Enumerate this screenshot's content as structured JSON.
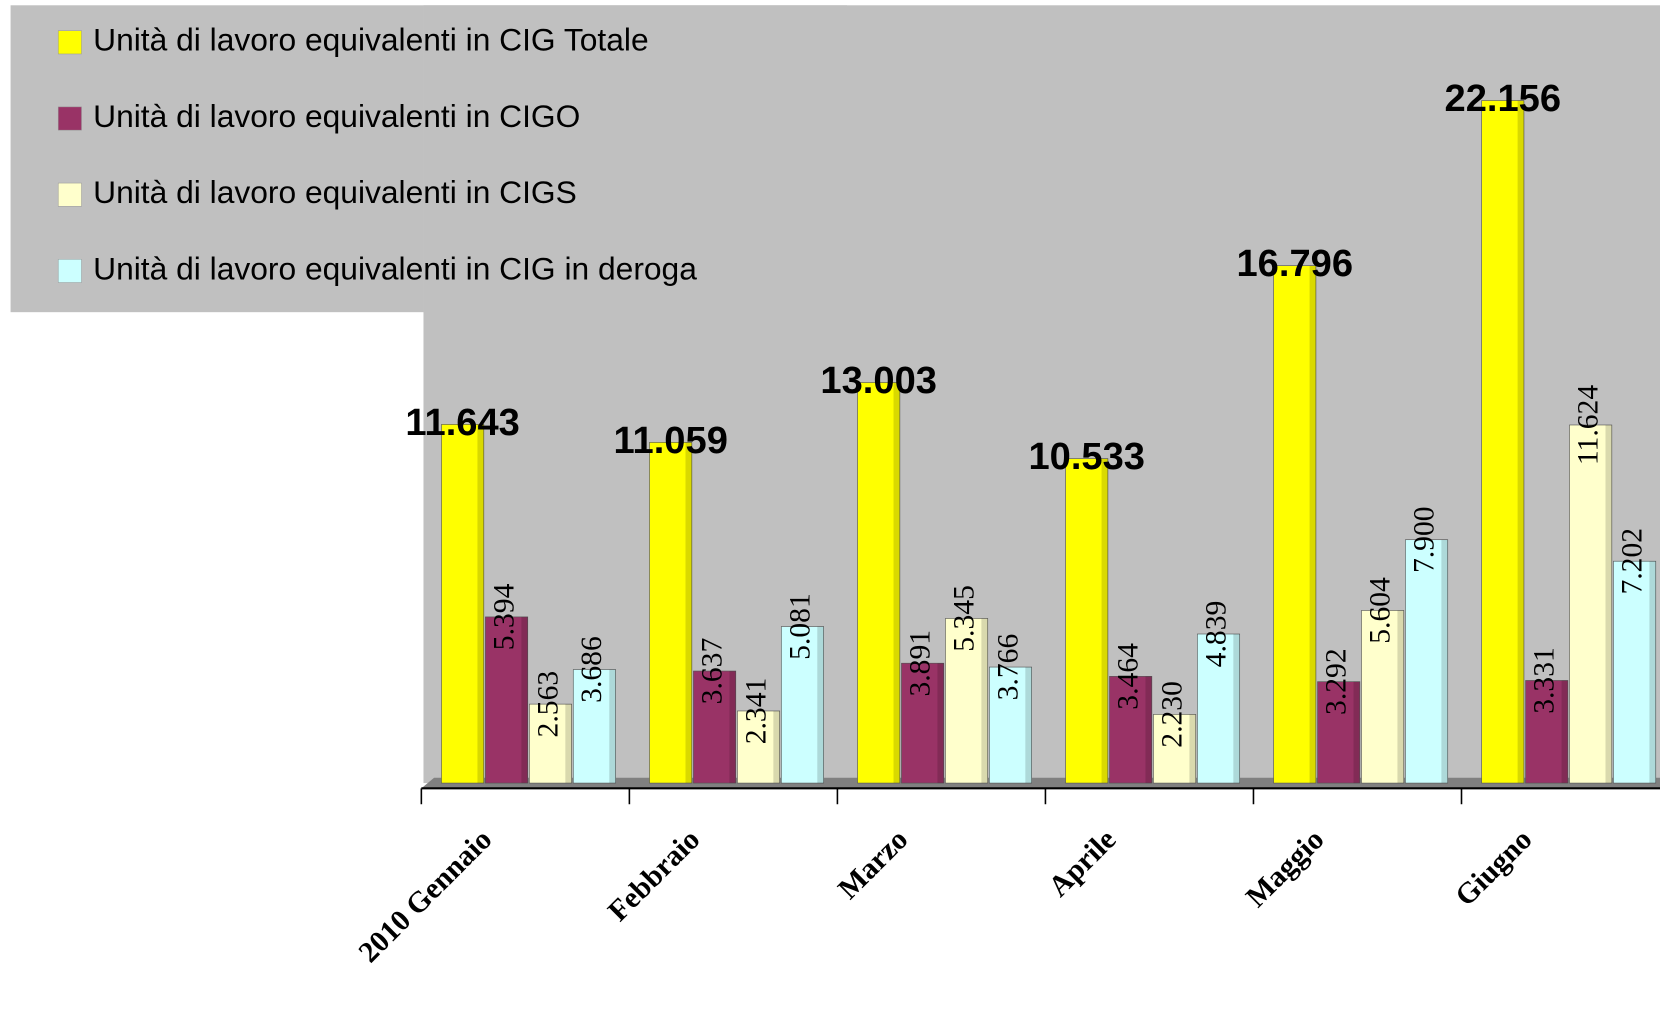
{
  "chart_data": {
    "type": "bar",
    "categories": [
      "2010 Gennaio",
      "Febbraio",
      "Marzo",
      "Aprile",
      "Maggio",
      "Giugno"
    ],
    "series": [
      {
        "name": "Unità di lavoro equivalenti in CIG Totale",
        "color": "#ffff00",
        "values": [
          11643,
          11059,
          13003,
          10533,
          16796,
          22156
        ],
        "value_labels": [
          "11.643",
          "11.059",
          "13.003",
          "10.533",
          "16.796",
          "22.156"
        ]
      },
      {
        "name": "Unità di lavoro equivalenti in CIGO",
        "color": "#993366",
        "values": [
          5394,
          3637,
          3891,
          3464,
          3292,
          3331
        ],
        "value_labels": [
          "5.394",
          "3.637",
          "3.891",
          "3.464",
          "3.292",
          "3.331"
        ]
      },
      {
        "name": "Unità di lavoro equivalenti in CIGS",
        "color": "#ffffcc",
        "values": [
          2563,
          2341,
          5345,
          2230,
          5604,
          11624
        ],
        "value_labels": [
          "2.563",
          "2.341",
          "5.345",
          "2.230",
          "5.604",
          "11.624"
        ]
      },
      {
        "name": "Unità di lavoro equivalenti in CIG in deroga",
        "color": "#ccffff",
        "values": [
          3686,
          5081,
          3766,
          4839,
          7900,
          7202
        ],
        "value_labels": [
          "3.686",
          "5.081",
          "3.766",
          "4.839",
          "7.900",
          "7.202"
        ]
      }
    ]
  }
}
